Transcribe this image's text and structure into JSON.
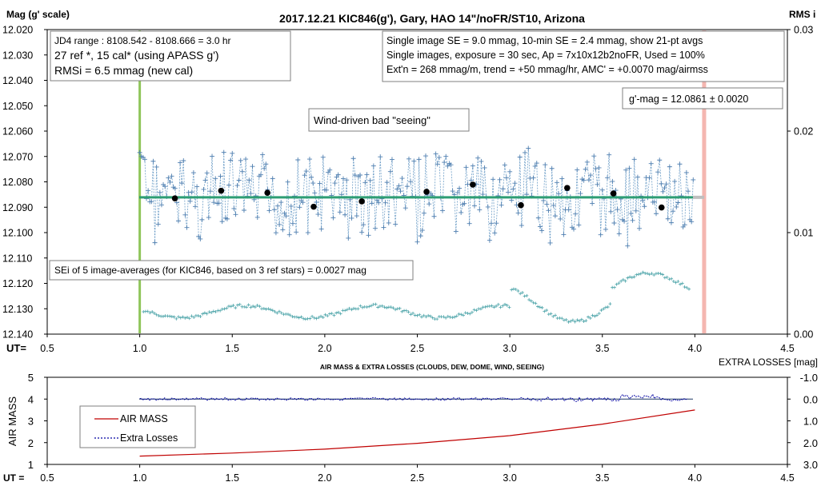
{
  "chart_data": [
    {
      "type": "scatter",
      "title": "2017.12.21  KIC846(g'),  Gary, HAO  14\"/noFR/ST10,  Arizona",
      "ylabel": "Mag (g' scale)",
      "y2label": "RMS i",
      "xlabel": "UT=",
      "xlim": [
        0.5,
        4.5
      ],
      "ylim": [
        12.14,
        12.02
      ],
      "y2lim": [
        0.0,
        0.03
      ],
      "x_ticks": [
        "0.5",
        "1.0",
        "1.5",
        "2.0",
        "2.5",
        "3.0",
        "3.5",
        "4.0",
        "4.5"
      ],
      "y_ticks": [
        "12.020",
        "12.030",
        "12.040",
        "12.050",
        "12.060",
        "12.070",
        "12.080",
        "12.090",
        "12.100",
        "12.110",
        "12.120",
        "12.130",
        "12.140"
      ],
      "y2_ticks": [
        "0.03",
        "0.02",
        "0.01",
        "0.00"
      ],
      "grid": false,
      "annotations": [
        "JD4 range : 8108.542 - 8108.666 = 3.0  hr",
        "27 ref *, 15 cal* (using APASS g')",
        "RMSi = 6.5 mmag (new cal)",
        "Single image SE = 9.0 mmag, 10-min SE = 2.4 mmag, show  21-pt avgs",
        "Single images, exposure = 30 sec, Ap = 7x10x12b2noFR,  Used = 100%",
        "Ext'n = 268 mmag/m, trend =  +50 mmag/hr, AMC' = +0.0070 mag/airmss",
        "g'-mag = 12.0861 ± 0.0020",
        "Wind-driven bad \"seeing\"",
        "SEi of 5 image-averages (for KIC846, based on 3 ref stars) = 0.0027  mag"
      ],
      "fit_level": 12.0861,
      "series": [
        {
          "name": "5 image-averages",
          "x": [
            1.19,
            1.44,
            1.69,
            1.94,
            2.2,
            2.55,
            2.8,
            3.06,
            3.31,
            3.56,
            3.82
          ],
          "y": [
            12.0865,
            12.0835,
            12.0843,
            12.0898,
            12.0877,
            12.0839,
            12.0811,
            12.0892,
            12.0824,
            12.0846,
            12.0901
          ]
        }
      ],
      "vertical_markers": [
        1.0,
        4.05
      ]
    },
    {
      "type": "line",
      "title": "AIR MASS & EXTRA LOSSES (CLOUDS, DEW, DOME, WIND, SEEING)",
      "ylabel": "AIR MASS",
      "y2label": "EXTRA LOSSES [mag]",
      "xlabel": "UT =",
      "xlim": [
        0.5,
        4.5
      ],
      "ylim": [
        1,
        5
      ],
      "y2lim": [
        -1.0,
        3.0
      ],
      "x_ticks": [
        "0.5",
        "1.0",
        "1.5",
        "2.0",
        "2.5",
        "3.0",
        "3.5",
        "4.0",
        "4.5"
      ],
      "y_ticks": [
        "1",
        "2",
        "3",
        "4",
        "5"
      ],
      "y2_ticks": [
        "-1.0",
        "0.0",
        "1.0",
        "2.0",
        "3.0"
      ],
      "legend": [
        "AIR MASS",
        "Extra Losses"
      ],
      "legend_position": "left",
      "colors": {
        "air_mass": "#c00000",
        "extra_losses": "#0000a0",
        "zero_line": "#1f3864"
      },
      "series": [
        {
          "name": "AIR MASS",
          "x": [
            1.0,
            1.5,
            2.0,
            2.5,
            3.0,
            3.5,
            4.0
          ],
          "y": [
            1.38,
            1.52,
            1.7,
            1.97,
            2.32,
            2.85,
            3.5
          ]
        }
      ],
      "extra_losses_level": 0.0
    }
  ]
}
